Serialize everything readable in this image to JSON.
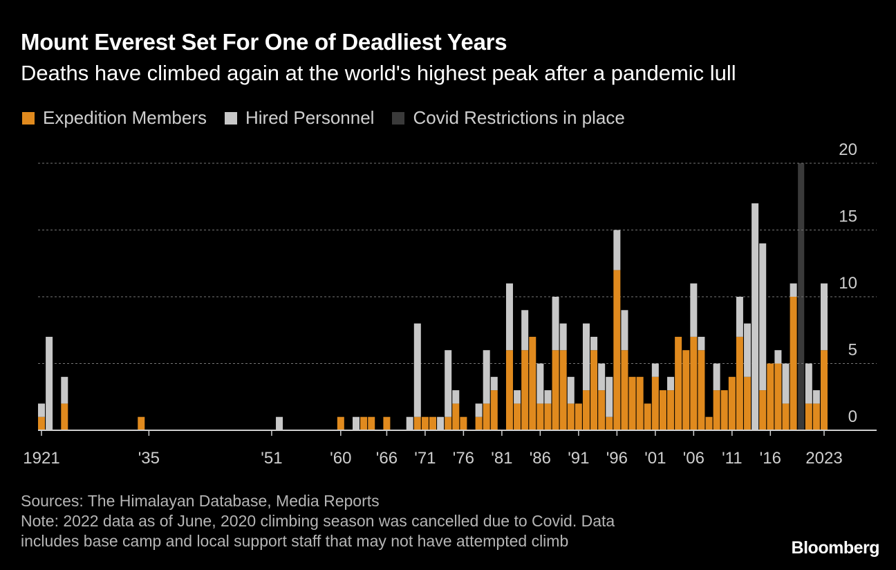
{
  "title": "Mount Everest Set For One of Deadliest Years",
  "subtitle": "Deaths have climbed again at the world's highest peak after a pandemic lull",
  "legend": [
    {
      "label": "Expedition Members",
      "color": "#e08a1e"
    },
    {
      "label": "Hired Personnel",
      "color": "#c8c8c8"
    },
    {
      "label": "Covid Restrictions in place",
      "color": "#3a3a3a"
    }
  ],
  "footer": {
    "sources": "Sources: The Himalayan Database, Media Reports",
    "note": "Note: 2022 data as of June, 2020 climbing season was cancelled due to Covid. Data",
    "note2": "includes base camp and local support staff that may not have attempted climb"
  },
  "brand": "Bloomberg",
  "chart_data": {
    "type": "bar",
    "stacked": true,
    "title": "Mount Everest Set For One of Deadliest Years",
    "xlabel": "",
    "ylabel": "",
    "ylim": [
      0,
      20
    ],
    "yticks": [
      0,
      5,
      10,
      15,
      20
    ],
    "grid": true,
    "shaded_region": {
      "label": "Covid Restrictions in place",
      "start": 2019.5,
      "end": 2020.5
    },
    "xtick_years": [
      1921,
      1935,
      1951,
      1960,
      1966,
      1971,
      1976,
      1981,
      1986,
      1991,
      1996,
      2001,
      2006,
      2011,
      2016,
      2023
    ],
    "xtick_labels": [
      "1921",
      "'35",
      "'51",
      "'60",
      "'66",
      "'71",
      "'76",
      "'81",
      "'86",
      "'91",
      "'96",
      "'01",
      "'06",
      "'11",
      "'16",
      "2023"
    ],
    "x_range": [
      1921,
      2023
    ],
    "years": [
      1921,
      1922,
      1924,
      1934,
      1952,
      1960,
      1962,
      1963,
      1964,
      1966,
      1969,
      1970,
      1971,
      1972,
      1973,
      1974,
      1975,
      1976,
      1977,
      1978,
      1979,
      1980,
      1982,
      1983,
      1984,
      1985,
      1986,
      1987,
      1988,
      1989,
      1990,
      1991,
      1992,
      1993,
      1994,
      1995,
      1996,
      1997,
      1998,
      1999,
      2000,
      2001,
      2002,
      2003,
      2004,
      2005,
      2006,
      2007,
      2008,
      2009,
      2010,
      2011,
      2012,
      2013,
      2014,
      2015,
      2016,
      2017,
      2018,
      2019,
      2021,
      2022,
      2023
    ],
    "series": [
      {
        "name": "Expedition Members",
        "color": "#e08a1e",
        "values": [
          1,
          0,
          2,
          1,
          0,
          1,
          0,
          1,
          1,
          1,
          0,
          1,
          1,
          1,
          0,
          1,
          2,
          1,
          0,
          1,
          2,
          3,
          6,
          2,
          6,
          7,
          2,
          2,
          6,
          6,
          2,
          2,
          3,
          6,
          3,
          1,
          12,
          6,
          4,
          4,
          2,
          4,
          3,
          3,
          7,
          6,
          7,
          6,
          1,
          3,
          3,
          4,
          7,
          4,
          0,
          3,
          5,
          5,
          2,
          10,
          2,
          2,
          6
        ]
      },
      {
        "name": "Hired Personnel",
        "color": "#c8c8c8",
        "values": [
          1,
          7,
          2,
          0,
          1,
          0,
          1,
          0,
          0,
          0,
          1,
          7,
          0,
          0,
          1,
          5,
          1,
          0,
          0,
          1,
          4,
          1,
          5,
          1,
          3,
          0,
          3,
          1,
          4,
          2,
          2,
          0,
          5,
          1,
          2,
          3,
          3,
          3,
          0,
          0,
          0,
          1,
          0,
          1,
          0,
          0,
          4,
          1,
          0,
          2,
          0,
          0,
          3,
          4,
          17,
          11,
          0,
          1,
          3,
          1,
          3,
          1,
          5
        ]
      }
    ]
  }
}
